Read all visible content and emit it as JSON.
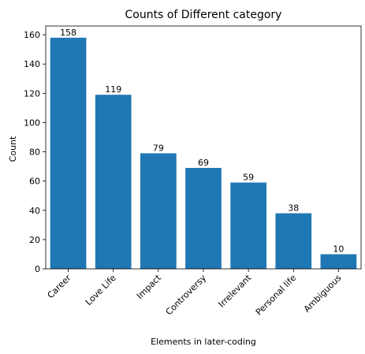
{
  "chart_data": {
    "type": "bar",
    "title": "Counts of Different category",
    "xlabel": "Elements in later-coding",
    "ylabel": "Count",
    "categories": [
      "Career",
      "Love Life",
      "Impact",
      "Controversy",
      "Irrelevant",
      "Personal life",
      "Ambiguous"
    ],
    "values": [
      158,
      119,
      79,
      69,
      59,
      38,
      10
    ],
    "ylim": [
      0,
      166
    ],
    "yticks": [
      0,
      20,
      40,
      60,
      80,
      100,
      120,
      140,
      160
    ],
    "bar_color": "#1f77b4",
    "grid": false,
    "legend": "none"
  }
}
